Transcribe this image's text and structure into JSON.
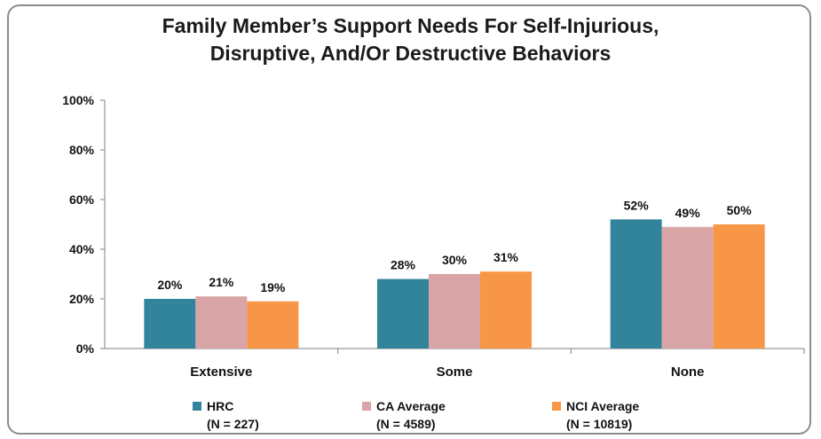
{
  "chart_data": {
    "type": "bar",
    "title_lines": [
      "Family Member’s Support Needs For Self-Injurious,",
      "Disruptive, And/Or Destructive Behaviors"
    ],
    "categories": [
      "Extensive",
      "Some",
      "None"
    ],
    "series": [
      {
        "name": "HRC",
        "n_label": "(N = 227)",
        "color": "#31849b",
        "values": [
          20,
          28,
          52
        ],
        "labels": [
          "20%",
          "28%",
          "52%"
        ]
      },
      {
        "name": "CA Average",
        "n_label": "(N = 4589)",
        "color": "#d9a5a7",
        "values": [
          21,
          30,
          49
        ],
        "labels": [
          "21%",
          "30%",
          "49%"
        ]
      },
      {
        "name": "NCI Average",
        "n_label": "(N = 10819)",
        "color": "#f79646",
        "values": [
          19,
          31,
          50
        ],
        "labels": [
          "19%",
          "31%",
          "50%"
        ]
      }
    ],
    "yticks": [
      "0%",
      "20%",
      "40%",
      "60%",
      "80%",
      "100%"
    ],
    "ylim": [
      0,
      100
    ],
    "grid": false,
    "legend_position": "bottom"
  }
}
